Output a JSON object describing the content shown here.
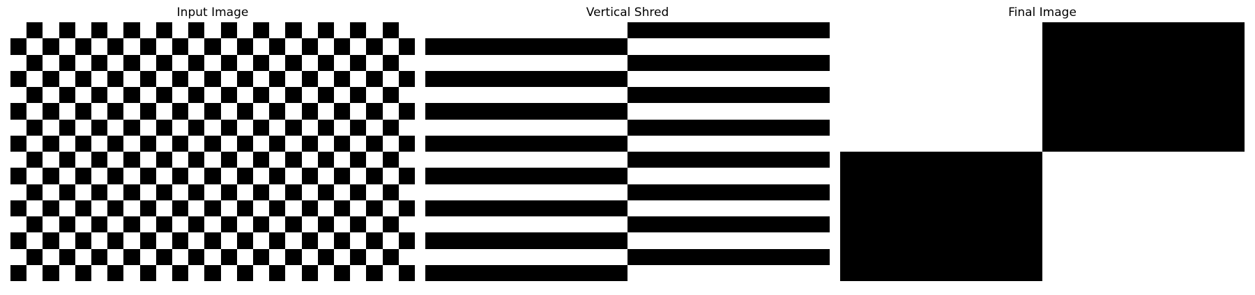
{
  "figure": {
    "panels": [
      {
        "title": "Input Image",
        "kind": "checkerboard",
        "rows": 16,
        "cols": 25,
        "top_left_color": "#ffffff",
        "colors": {
          "dark": "#000000",
          "light": "#ffffff"
        }
      },
      {
        "title": "Vertical Shred",
        "kind": "stripes",
        "rows": 16,
        "cols": 2,
        "top_left_color": "#ffffff",
        "colors": {
          "dark": "#000000",
          "light": "#ffffff"
        }
      },
      {
        "title": "Final Image",
        "kind": "checkerboard",
        "rows": 2,
        "cols": 2,
        "top_left_color": "#ffffff",
        "colors": {
          "dark": "#000000",
          "light": "#ffffff"
        }
      }
    ]
  }
}
